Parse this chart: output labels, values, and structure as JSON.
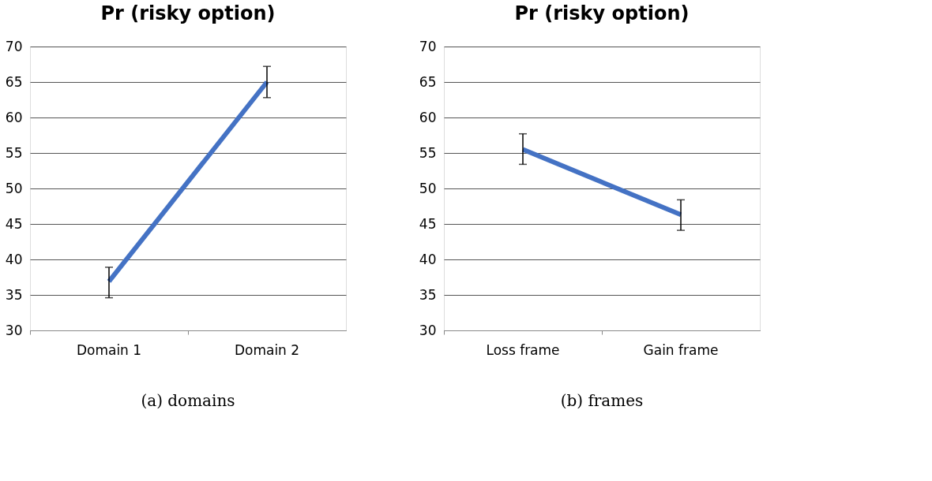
{
  "chart_data": [
    {
      "type": "line",
      "title": "Pr (risky option)",
      "categories": [
        "Domain 1",
        "Domain 2"
      ],
      "series": [
        {
          "color": "#4472c4",
          "values": [
            36.9,
            65.0
          ],
          "errors": [
            [
              34.6,
              38.9
            ],
            [
              62.8,
              67.2
            ]
          ]
        }
      ],
      "ylim": [
        30,
        70
      ],
      "yticks": [
        30,
        35,
        40,
        45,
        50,
        55,
        60,
        65,
        70
      ],
      "grid": "y",
      "marker": "none",
      "line_style": "solid",
      "annotations": [
        "(a) domains"
      ]
    },
    {
      "type": "line",
      "title": "Pr (risky option)",
      "categories": [
        "Loss frame",
        "Gain frame"
      ],
      "series": [
        {
          "color": "#4472c4",
          "values": [
            55.5,
            46.3
          ],
          "errors": [
            [
              53.4,
              57.7
            ],
            [
              44.1,
              48.4
            ]
          ]
        }
      ],
      "ylim": [
        30,
        70
      ],
      "yticks": [
        30,
        35,
        40,
        45,
        50,
        55,
        60,
        65,
        70
      ],
      "grid": "y",
      "marker": "none",
      "line_style": "solid",
      "annotations": [
        "(b) frames"
      ]
    }
  ]
}
